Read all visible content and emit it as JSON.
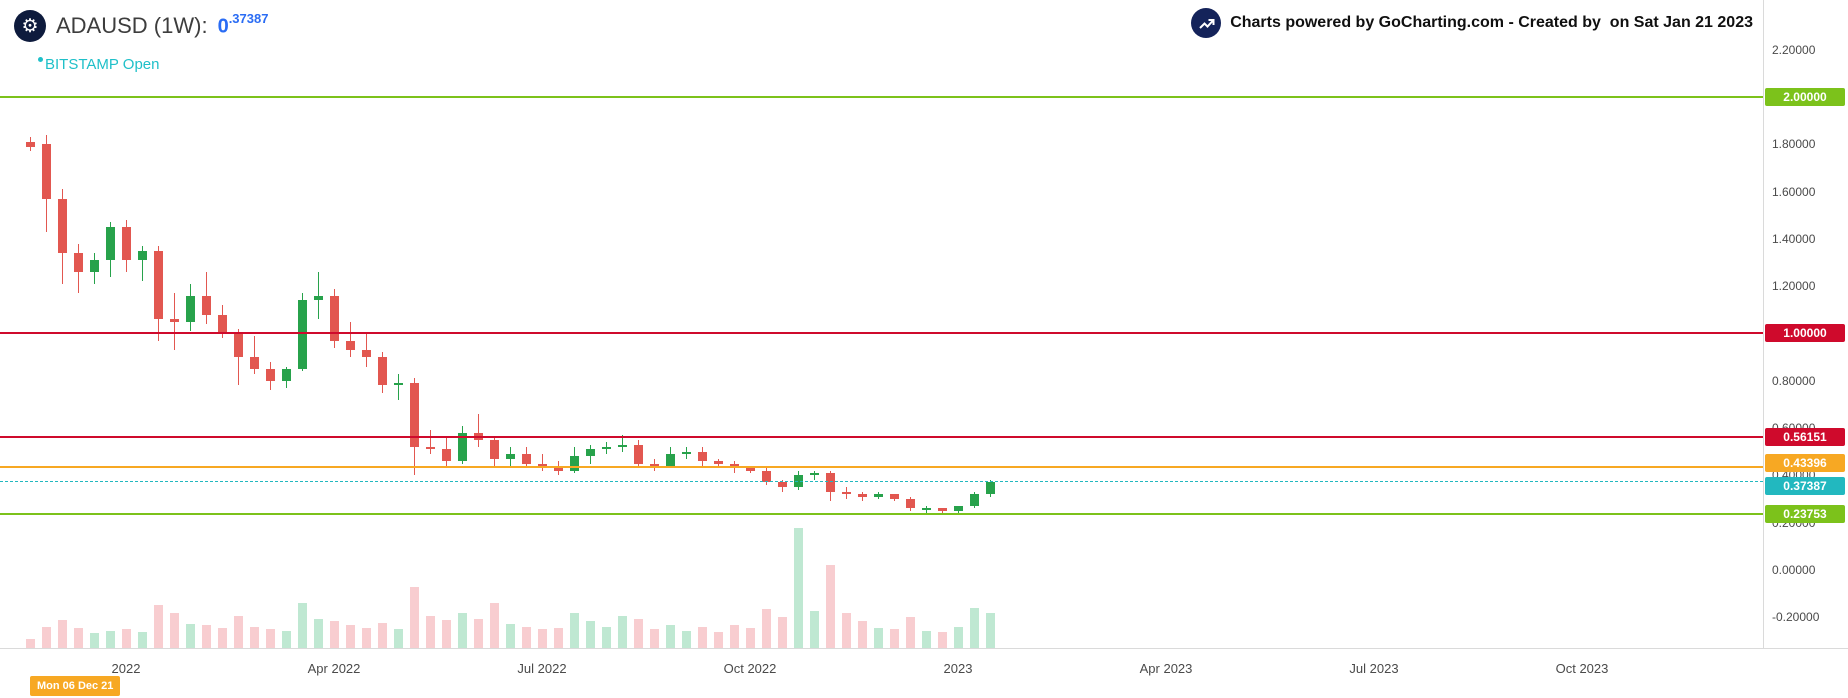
{
  "header": {
    "symbol_title": "ADAUSD (1W):",
    "price_integer": "0",
    "price_decimals": ".37387",
    "exchange_line": "BITSTAMP Open",
    "attribution": "Charts powered by GoCharting.com - Created by  on Sat Jan 21 2023"
  },
  "date_badge": "Mon 06 Dec 21",
  "colors": {
    "accent_blue": "#2a6cf4",
    "exchange_teal": "#1fc0c9",
    "candle_up": "#27a24b",
    "candle_down": "#e25750",
    "volume_up": "#bfe8d2",
    "volume_down": "#f8cdd0",
    "level_green": "#7cc21b",
    "level_red": "#cf0a2c",
    "level_orange": "#f7a823",
    "level_teal": "#22b8bf",
    "logo_navy": "#0e1b3d"
  },
  "chart_data": {
    "type": "candlestick",
    "title": "ADAUSD (1W)",
    "exchange": "BITSTAMP",
    "interval": "1W",
    "current_price": 0.37387,
    "ylim": [
      -0.33,
      2.41
    ],
    "volume_max": 9.0,
    "layout": {
      "x_start": 30,
      "x_step": 16,
      "volume_height": 120,
      "grid": "off",
      "legend": "none"
    },
    "y_axis": {
      "ticks": [
        {
          "value": 2.2,
          "label": "2.20000"
        },
        {
          "value": 2.0,
          "label": "2.00000"
        },
        {
          "value": 1.8,
          "label": "1.80000"
        },
        {
          "value": 1.6,
          "label": "1.60000"
        },
        {
          "value": 1.4,
          "label": "1.40000"
        },
        {
          "value": 1.2,
          "label": "1.20000"
        },
        {
          "value": 1.0,
          "label": "1.00000"
        },
        {
          "value": 0.8,
          "label": "0.80000"
        },
        {
          "value": 0.6,
          "label": "0.60000"
        },
        {
          "value": 0.4,
          "label": "0.40000"
        },
        {
          "value": 0.2,
          "label": "0.20000"
        },
        {
          "value": 0.0,
          "label": "0.00000"
        },
        {
          "value": -0.2,
          "label": "-0.20000"
        }
      ]
    },
    "x_axis": {
      "labels": [
        {
          "label": "2022",
          "i": 6
        },
        {
          "label": "Apr 2022",
          "i": 19
        },
        {
          "label": "Jul 2022",
          "i": 32
        },
        {
          "label": "Oct 2022",
          "i": 45
        },
        {
          "label": "2023",
          "i": 58
        },
        {
          "label": "Apr 2023",
          "i": 71
        },
        {
          "label": "Jul 2023",
          "i": 84
        },
        {
          "label": "Oct 2023",
          "i": 97
        }
      ]
    },
    "levels": [
      {
        "value": 2.0,
        "label": "2.00000",
        "color": "#7cc21b",
        "style": "solid",
        "badge_offset": 0
      },
      {
        "value": 1.0,
        "label": "1.00000",
        "color": "#cf0a2c",
        "style": "solid",
        "badge_offset": 0
      },
      {
        "value": 0.56151,
        "label": "0.56151",
        "color": "#cf0a2c",
        "style": "solid",
        "badge_offset": 0
      },
      {
        "value": 0.43396,
        "label": "0.43396",
        "color": "#f7a823",
        "style": "solid",
        "badge_offset": -4
      },
      {
        "value": 0.37387,
        "label": "0.37387",
        "color": "#22b8bf",
        "style": "dashed",
        "badge_offset": 4,
        "role": "current-price"
      },
      {
        "value": 0.23753,
        "label": "0.23753",
        "color": "#7cc21b",
        "style": "solid",
        "badge_offset": 0
      }
    ],
    "candles_format": [
      "date",
      "open",
      "high",
      "low",
      "close",
      "volume"
    ],
    "candles": [
      [
        "2021-11-22",
        1.81,
        1.83,
        1.77,
        1.79,
        0.7
      ],
      [
        "2021-11-29",
        1.8,
        1.84,
        1.43,
        1.57,
        1.6
      ],
      [
        "2021-12-06",
        1.57,
        1.61,
        1.21,
        1.34,
        2.1
      ],
      [
        "2021-12-13",
        1.34,
        1.38,
        1.17,
        1.26,
        1.5
      ],
      [
        "2021-12-20",
        1.26,
        1.34,
        1.21,
        1.31,
        1.1
      ],
      [
        "2021-12-27",
        1.31,
        1.47,
        1.24,
        1.45,
        1.3
      ],
      [
        "2022-01-03",
        1.45,
        1.48,
        1.26,
        1.31,
        1.4
      ],
      [
        "2022-01-10",
        1.31,
        1.37,
        1.22,
        1.35,
        1.2
      ],
      [
        "2022-01-17",
        1.35,
        1.37,
        0.97,
        1.06,
        3.2
      ],
      [
        "2022-01-24",
        1.06,
        1.17,
        0.93,
        1.05,
        2.6
      ],
      [
        "2022-01-31",
        1.05,
        1.21,
        1.01,
        1.16,
        1.8
      ],
      [
        "2022-02-07",
        1.16,
        1.26,
        1.04,
        1.08,
        1.7
      ],
      [
        "2022-02-14",
        1.08,
        1.12,
        0.98,
        1.0,
        1.5
      ],
      [
        "2022-02-21",
        1.0,
        1.02,
        0.78,
        0.9,
        2.4
      ],
      [
        "2022-02-28",
        0.9,
        0.99,
        0.83,
        0.85,
        1.6
      ],
      [
        "2022-03-07",
        0.85,
        0.88,
        0.76,
        0.8,
        1.4
      ],
      [
        "2022-03-14",
        0.8,
        0.86,
        0.77,
        0.85,
        1.3
      ],
      [
        "2022-03-21",
        0.85,
        1.17,
        0.84,
        1.14,
        3.4
      ],
      [
        "2022-03-28",
        1.14,
        1.26,
        1.06,
        1.16,
        2.2
      ],
      [
        "2022-04-04",
        1.16,
        1.19,
        0.94,
        0.97,
        2.0
      ],
      [
        "2022-04-11",
        0.97,
        1.05,
        0.9,
        0.93,
        1.7
      ],
      [
        "2022-04-18",
        0.93,
        1.0,
        0.86,
        0.9,
        1.5
      ],
      [
        "2022-04-25",
        0.9,
        0.92,
        0.75,
        0.78,
        1.9
      ],
      [
        "2022-05-02",
        0.78,
        0.83,
        0.72,
        0.79,
        1.4
      ],
      [
        "2022-05-09",
        0.79,
        0.81,
        0.4,
        0.52,
        4.6
      ],
      [
        "2022-05-16",
        0.52,
        0.59,
        0.49,
        0.51,
        2.4
      ],
      [
        "2022-05-23",
        0.51,
        0.56,
        0.44,
        0.46,
        2.1
      ],
      [
        "2022-05-30",
        0.46,
        0.61,
        0.45,
        0.58,
        2.6
      ],
      [
        "2022-06-06",
        0.58,
        0.66,
        0.52,
        0.55,
        2.2
      ],
      [
        "2022-06-13",
        0.55,
        0.56,
        0.44,
        0.47,
        3.4
      ],
      [
        "2022-06-20",
        0.47,
        0.52,
        0.44,
        0.49,
        1.8
      ],
      [
        "2022-06-27",
        0.49,
        0.52,
        0.44,
        0.45,
        1.6
      ],
      [
        "2022-07-04",
        0.45,
        0.49,
        0.42,
        0.44,
        1.4
      ],
      [
        "2022-07-11",
        0.44,
        0.46,
        0.4,
        0.42,
        1.5
      ],
      [
        "2022-07-18",
        0.42,
        0.52,
        0.41,
        0.48,
        2.6
      ],
      [
        "2022-07-25",
        0.48,
        0.53,
        0.45,
        0.51,
        2.0
      ],
      [
        "2022-08-01",
        0.51,
        0.54,
        0.49,
        0.52,
        1.6
      ],
      [
        "2022-08-08",
        0.52,
        0.57,
        0.5,
        0.53,
        2.4
      ],
      [
        "2022-08-15",
        0.53,
        0.55,
        0.44,
        0.45,
        2.2
      ],
      [
        "2022-08-22",
        0.45,
        0.47,
        0.42,
        0.44,
        1.4
      ],
      [
        "2022-08-29",
        0.44,
        0.52,
        0.43,
        0.49,
        1.7
      ],
      [
        "2022-09-05",
        0.49,
        0.52,
        0.47,
        0.5,
        1.3
      ],
      [
        "2022-09-12",
        0.5,
        0.52,
        0.44,
        0.46,
        1.6
      ],
      [
        "2022-09-19",
        0.46,
        0.47,
        0.43,
        0.45,
        1.2
      ],
      [
        "2022-09-26",
        0.45,
        0.46,
        0.41,
        0.43,
        1.7
      ],
      [
        "2022-10-03",
        0.43,
        0.44,
        0.41,
        0.42,
        1.5
      ],
      [
        "2022-10-10",
        0.42,
        0.43,
        0.36,
        0.37,
        2.9
      ],
      [
        "2022-10-17",
        0.37,
        0.38,
        0.33,
        0.35,
        2.3
      ],
      [
        "2022-10-24",
        0.35,
        0.42,
        0.34,
        0.4,
        9.0
      ],
      [
        "2022-10-31",
        0.4,
        0.42,
        0.38,
        0.41,
        2.8
      ],
      [
        "2022-11-07",
        0.41,
        0.42,
        0.29,
        0.33,
        6.2
      ],
      [
        "2022-11-14",
        0.33,
        0.35,
        0.3,
        0.32,
        2.6
      ],
      [
        "2022-11-21",
        0.32,
        0.33,
        0.29,
        0.31,
        2.0
      ],
      [
        "2022-11-28",
        0.31,
        0.33,
        0.3,
        0.32,
        1.5
      ],
      [
        "2022-12-05",
        0.32,
        0.32,
        0.29,
        0.3,
        1.4
      ],
      [
        "2022-12-12",
        0.3,
        0.31,
        0.25,
        0.26,
        2.3
      ],
      [
        "2022-12-19",
        0.26,
        0.27,
        0.24,
        0.26,
        1.3
      ],
      [
        "2022-12-26",
        0.26,
        0.26,
        0.24,
        0.25,
        1.2
      ],
      [
        "2023-01-02",
        0.25,
        0.27,
        0.24,
        0.27,
        1.6
      ],
      [
        "2023-01-09",
        0.27,
        0.33,
        0.26,
        0.32,
        3.0
      ],
      [
        "2023-01-16",
        0.32,
        0.38,
        0.31,
        0.37387,
        2.6
      ]
    ]
  }
}
